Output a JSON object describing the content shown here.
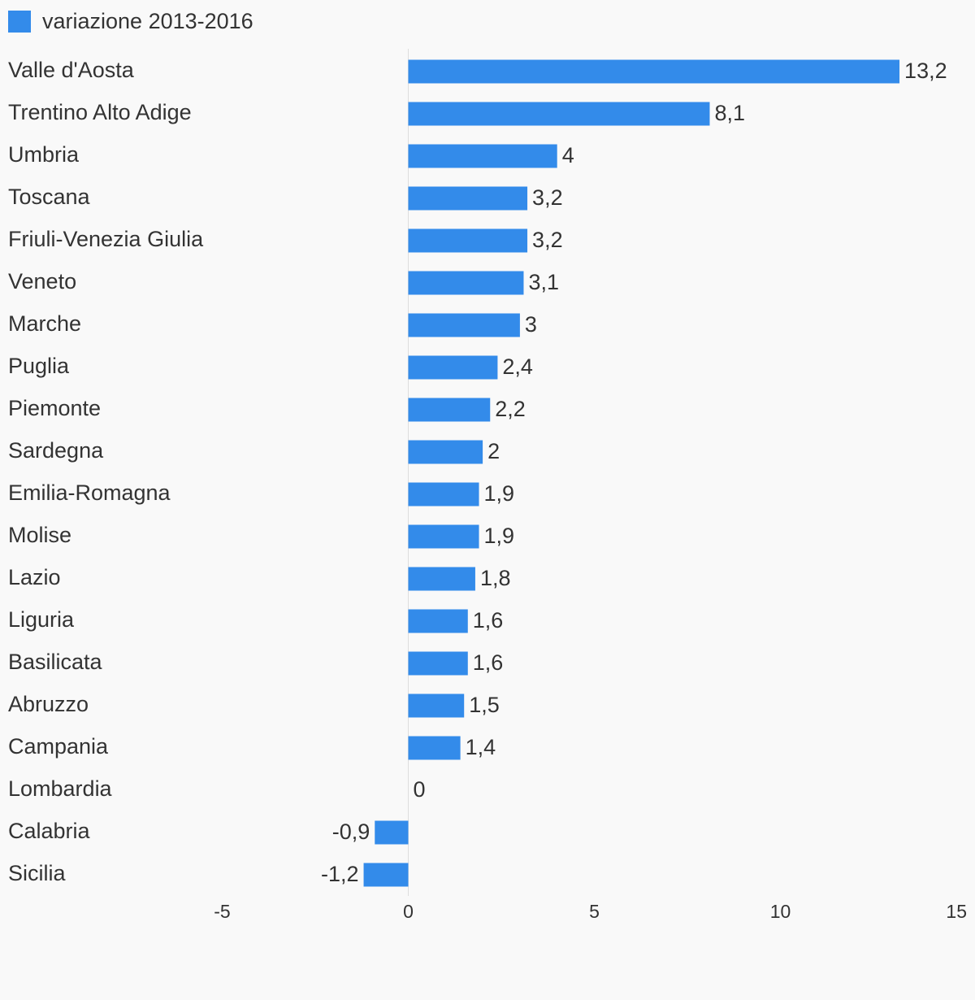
{
  "colors": {
    "bar": "#338bea",
    "axis": "#dddddd",
    "text": "#333333",
    "background": "#f9f9f9"
  },
  "legend": {
    "label": "variazione 2013-2016"
  },
  "chart_data": {
    "type": "bar",
    "orientation": "horizontal",
    "legend_position": "top-left",
    "grid": false,
    "xlim": [
      -5,
      15
    ],
    "ticks": [
      -5,
      0,
      5,
      10,
      15
    ],
    "tick_labels": [
      "-5",
      "0",
      "5",
      "10",
      "15"
    ],
    "categories": [
      "Valle d'Aosta",
      "Trentino Alto Adige",
      "Umbria",
      "Toscana",
      "Friuli-Venezia Giulia",
      "Veneto",
      "Marche",
      "Puglia",
      "Piemonte",
      "Sardegna",
      "Emilia-Romagna",
      "Molise",
      "Lazio",
      "Liguria",
      "Basilicata",
      "Abruzzo",
      "Campania",
      "Lombardia",
      "Calabria",
      "Sicilia"
    ],
    "series": [
      {
        "name": "variazione 2013-2016",
        "values": [
          13.2,
          8.1,
          4,
          3.2,
          3.2,
          3.1,
          3,
          2.4,
          2.2,
          2,
          1.9,
          1.9,
          1.8,
          1.6,
          1.6,
          1.5,
          1.4,
          0,
          -0.9,
          -1.2
        ],
        "labels": [
          "13,2",
          "8,1",
          "4",
          "3,2",
          "3,2",
          "3,1",
          "3",
          "2,4",
          "2,2",
          "2",
          "1,9",
          "1,9",
          "1,8",
          "1,6",
          "1,6",
          "1,5",
          "1,4",
          "0",
          "-0,9",
          "-1,2"
        ]
      }
    ]
  }
}
